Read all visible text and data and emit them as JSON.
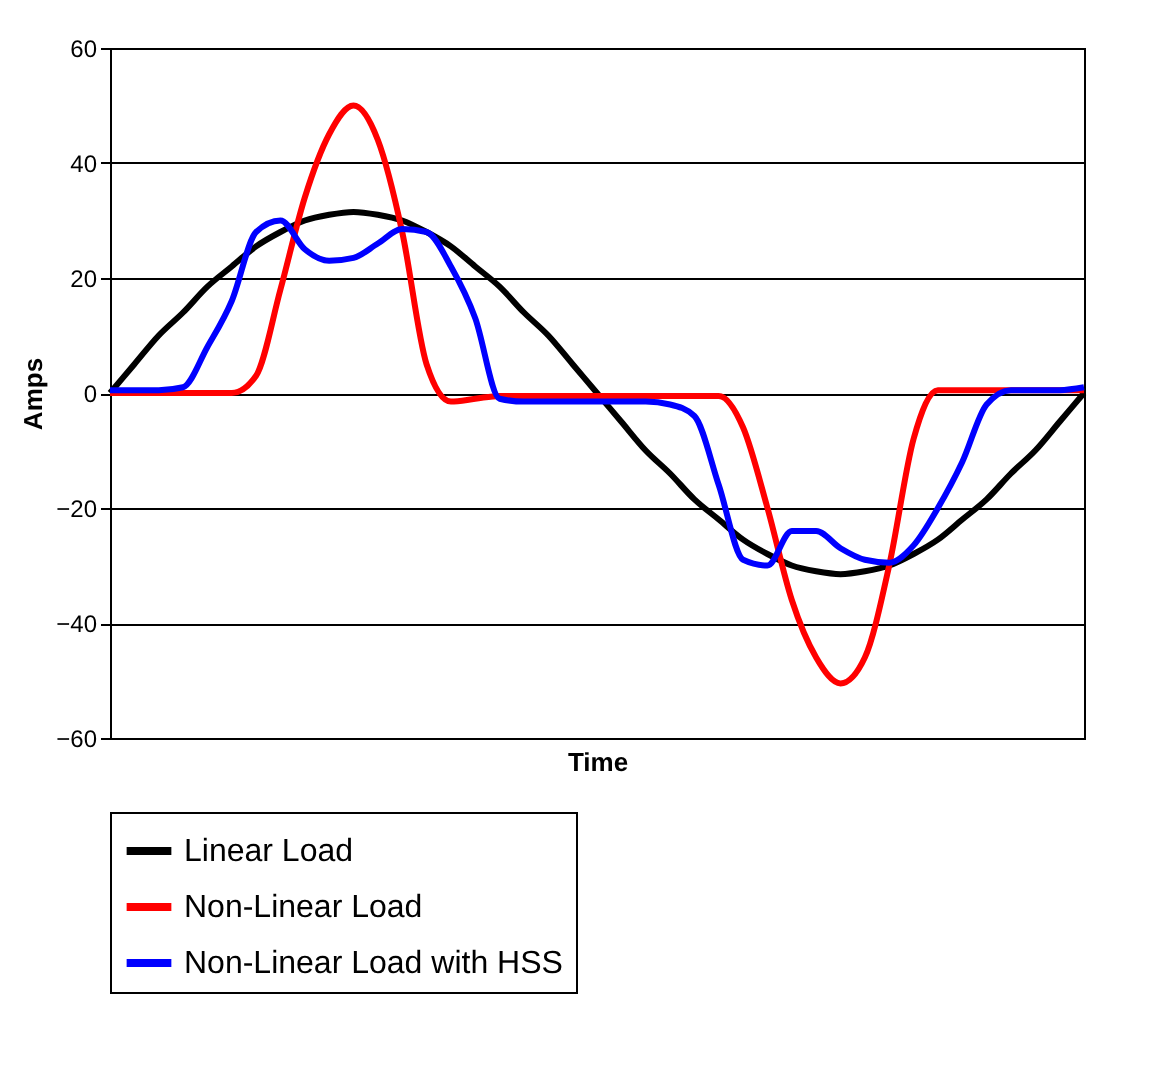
{
  "chart_data": {
    "type": "line",
    "xlabel": "Time",
    "ylabel": "Amps",
    "categories": [
      null,
      null,
      null,
      null,
      null,
      null,
      null,
      null,
      null,
      null,
      null,
      null,
      null,
      null,
      null,
      null,
      null,
      null,
      null,
      null,
      null,
      null,
      null,
      null,
      null,
      null,
      null,
      null,
      null,
      null,
      null,
      null,
      null,
      null,
      null,
      null,
      null,
      null,
      null,
      null,
      null
    ],
    "ylim": [
      -60,
      60
    ],
    "yticks": [
      -60,
      -40,
      -20,
      0,
      20,
      40,
      60
    ],
    "grid": "y",
    "legend": "bottom",
    "marker": "none",
    "line_style": "solid",
    "series": [
      {
        "name": "Linear Load",
        "color": "#000000",
        "values": [
          0,
          5,
          10,
          14,
          18.5,
          22,
          25.5,
          28,
          30,
          31,
          31.5,
          31,
          30,
          28,
          25.5,
          22,
          18.5,
          14,
          10,
          5,
          0,
          -5,
          -10,
          -14,
          -18.5,
          -22,
          -25.5,
          -28,
          -30,
          -31,
          -31.5,
          -31,
          -30,
          -28,
          -25.5,
          -22,
          -18.5,
          -14,
          -10,
          -5,
          0
        ]
      },
      {
        "name": "Non-Linear Load",
        "color": "#ff0000",
        "values": [
          0,
          0,
          0,
          0,
          0,
          0,
          3,
          18,
          34,
          45,
          50,
          44,
          28,
          5,
          -1.5,
          -1,
          -0.5,
          -0.5,
          -0.5,
          -0.5,
          -0.5,
          -0.5,
          -0.5,
          -0.5,
          -0.5,
          -0.5,
          -6,
          -20,
          -36,
          -46,
          -50.5,
          -46,
          -30,
          -8,
          0.5,
          0.5,
          0.5,
          0.5,
          0.5,
          0.5,
          0.5
        ]
      },
      {
        "name": "Non-Linear Load with HSS",
        "color": "#0000ff",
        "values": [
          0.5,
          0.5,
          0.5,
          1,
          8,
          16,
          28,
          30,
          25,
          23,
          23.5,
          26,
          28.5,
          28,
          22,
          13,
          -1,
          -1.5,
          -1.5,
          -1.5,
          -1.5,
          -1.5,
          -1.5,
          -2,
          -4,
          -16,
          -29,
          -30,
          -24,
          -24,
          -27,
          -29,
          -29.5,
          -26.5,
          -20,
          -12,
          -2,
          0.5,
          0.5,
          0.5,
          1
        ]
      }
    ]
  }
}
